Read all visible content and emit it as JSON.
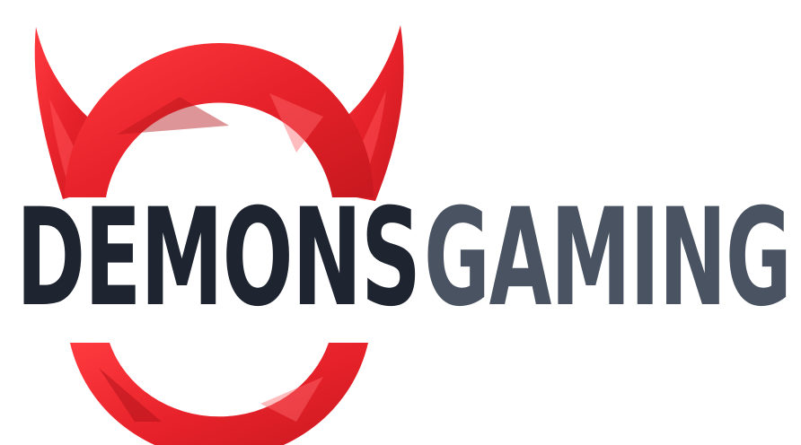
{
  "logo": {
    "word_primary": "DEMONS",
    "word_secondary": "GAMING",
    "icon": "demon-horns-ring-icon",
    "colors": {
      "red": "#e8222a",
      "red_light": "#ff4a4f",
      "red_dark": "#b3141b",
      "text_primary": "#1f2530",
      "text_secondary": "#4a5361"
    }
  }
}
